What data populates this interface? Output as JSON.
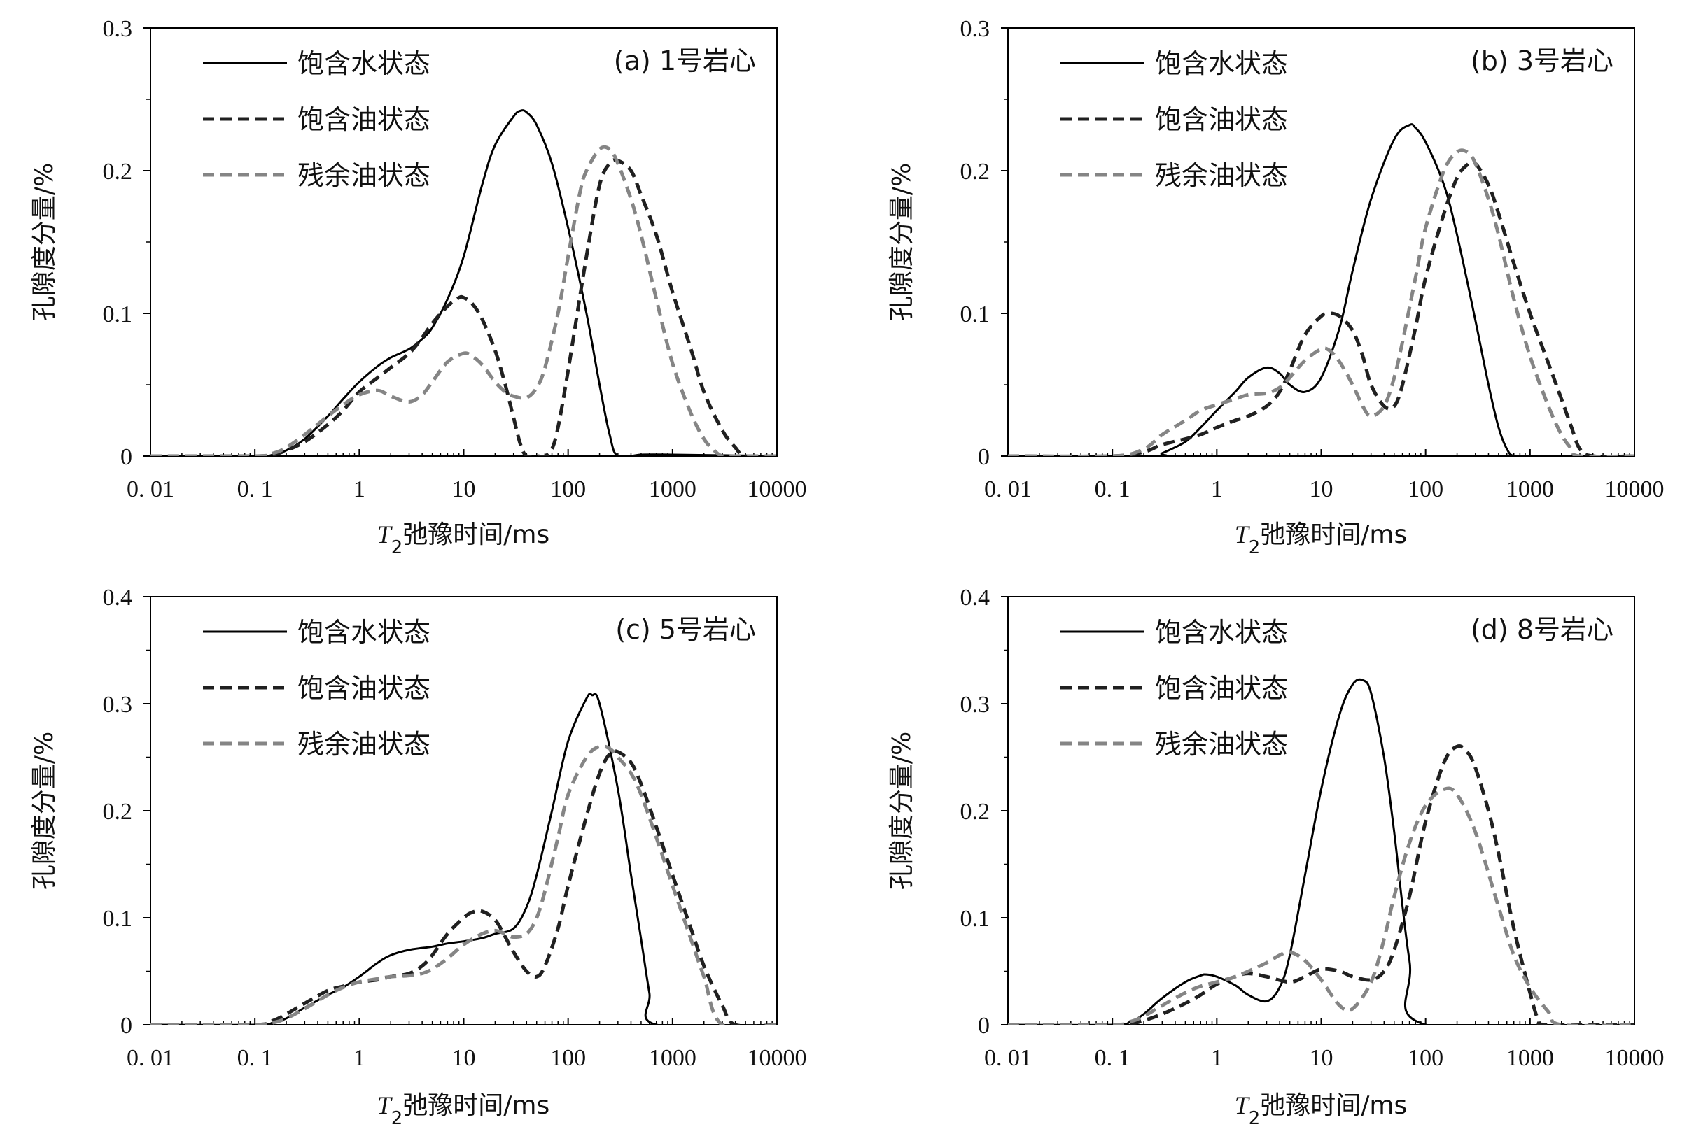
{
  "chart_data": [
    {
      "type": "line",
      "panel_label": "(a) 1号岩心",
      "xlabel": "T2弛豫时间/ms",
      "ylabel": "孔隙度分量/%",
      "x_scale": "log",
      "xlim": [
        0.01,
        10000
      ],
      "ylim": [
        0,
        0.3
      ],
      "x_ticks": [
        "0. 01",
        "0. 1",
        "1",
        "10",
        "100",
        "1000",
        "10000"
      ],
      "y_ticks": [
        "0",
        "0.1",
        "0.2",
        "0.3"
      ],
      "legend_position": "top-left",
      "series": [
        {
          "name": "饱含水状态",
          "color": "#000000",
          "style": "solid",
          "x": [
            0.01,
            0.1,
            0.15,
            0.2,
            0.3,
            0.5,
            0.7,
            1,
            1.5,
            2,
            3,
            4,
            5,
            7,
            10,
            15,
            20,
            30,
            35,
            40,
            50,
            70,
            100,
            150,
            200,
            250,
            300,
            500,
            1000,
            10000
          ],
          "y": [
            0,
            0,
            0.001,
            0.004,
            0.012,
            0.028,
            0.04,
            0.052,
            0.063,
            0.069,
            0.075,
            0.082,
            0.09,
            0.11,
            0.14,
            0.19,
            0.218,
            0.238,
            0.242,
            0.241,
            0.232,
            0.205,
            0.16,
            0.1,
            0.05,
            0.015,
            0,
            0.001,
            0.001,
            0
          ]
        },
        {
          "name": "饱含油状态",
          "color": "#202020",
          "style": "dashed",
          "x": [
            0.01,
            0.1,
            0.15,
            0.2,
            0.3,
            0.5,
            0.7,
            1,
            1.5,
            2,
            3,
            4,
            5,
            7,
            9,
            10,
            12,
            15,
            20,
            25,
            30,
            35,
            40,
            50,
            60,
            70,
            80,
            100,
            150,
            200,
            250,
            300,
            400,
            500,
            700,
            1000,
            1500,
            2000,
            3000,
            4000,
            5000,
            10000
          ],
          "y": [
            0,
            0,
            0.001,
            0.004,
            0.01,
            0.022,
            0.032,
            0.045,
            0.055,
            0.062,
            0.072,
            0.083,
            0.093,
            0.105,
            0.111,
            0.111,
            0.107,
            0.096,
            0.074,
            0.05,
            0.027,
            0.008,
            0,
            0,
            0,
            0.005,
            0.02,
            0.06,
            0.14,
            0.19,
            0.205,
            0.207,
            0.2,
            0.183,
            0.155,
            0.115,
            0.075,
            0.045,
            0.018,
            0.006,
            0,
            0
          ]
        },
        {
          "name": "残余油状态",
          "color": "#858585",
          "style": "dashed",
          "x": [
            0.01,
            0.1,
            0.15,
            0.2,
            0.3,
            0.5,
            0.7,
            1,
            1.5,
            2,
            3,
            4,
            5,
            7,
            10,
            12,
            15,
            20,
            25,
            30,
            40,
            50,
            60,
            80,
            100,
            130,
            150,
            200,
            250,
            300,
            400,
            500,
            700,
            1000,
            1500,
            2000,
            2500,
            3000,
            4000,
            10000
          ],
          "y": [
            0,
            0,
            0.002,
            0.006,
            0.015,
            0.028,
            0.036,
            0.043,
            0.046,
            0.042,
            0.038,
            0.043,
            0.052,
            0.066,
            0.072,
            0.07,
            0.064,
            0.052,
            0.045,
            0.042,
            0.041,
            0.048,
            0.062,
            0.1,
            0.14,
            0.185,
            0.2,
            0.215,
            0.215,
            0.205,
            0.18,
            0.155,
            0.11,
            0.065,
            0.03,
            0.012,
            0.004,
            0,
            0,
            0
          ]
        }
      ]
    },
    {
      "type": "line",
      "panel_label": "(b) 3号岩心",
      "xlabel": "T2弛豫时间/ms",
      "ylabel": "孔隙度分量/%",
      "x_scale": "log",
      "xlim": [
        0.01,
        10000
      ],
      "ylim": [
        0,
        0.3
      ],
      "x_ticks": [
        "0. 01",
        "0. 1",
        "1",
        "10",
        "100",
        "1000",
        "10000"
      ],
      "y_ticks": [
        "0",
        "0.1",
        "0.2",
        "0.3"
      ],
      "legend_position": "top-left",
      "series": [
        {
          "name": "饱含水状态",
          "color": "#000000",
          "style": "solid",
          "x": [
            0.01,
            0.25,
            0.3,
            0.5,
            0.7,
            1,
            1.5,
            2,
            3,
            4,
            5,
            7,
            10,
            15,
            20,
            30,
            50,
            70,
            80,
            100,
            150,
            200,
            300,
            400,
            500,
            600,
            700,
            1000,
            10000
          ],
          "y": [
            0,
            0,
            0.002,
            0.01,
            0.02,
            0.032,
            0.045,
            0.055,
            0.062,
            0.058,
            0.05,
            0.045,
            0.055,
            0.09,
            0.13,
            0.18,
            0.222,
            0.232,
            0.23,
            0.22,
            0.19,
            0.155,
            0.095,
            0.05,
            0.02,
            0.005,
            0,
            0,
            0
          ]
        },
        {
          "name": "饱含油状态",
          "color": "#202020",
          "style": "dashed",
          "x": [
            0.01,
            0.1,
            0.2,
            0.3,
            0.5,
            0.7,
            1,
            1.5,
            2,
            3,
            4,
            5,
            7,
            10,
            12,
            15,
            20,
            25,
            30,
            40,
            50,
            60,
            80,
            100,
            150,
            200,
            250,
            300,
            400,
            500,
            700,
            1000,
            1500,
            2000,
            2500,
            3000,
            4000,
            10000
          ],
          "y": [
            0,
            0,
            0.003,
            0.008,
            0.012,
            0.015,
            0.02,
            0.025,
            0.028,
            0.035,
            0.045,
            0.06,
            0.085,
            0.098,
            0.1,
            0.098,
            0.088,
            0.07,
            0.05,
            0.035,
            0.035,
            0.05,
            0.09,
            0.125,
            0.17,
            0.195,
            0.204,
            0.205,
            0.19,
            0.17,
            0.135,
            0.1,
            0.065,
            0.04,
            0.02,
            0.005,
            0,
            0
          ]
        },
        {
          "name": "残余油状态",
          "color": "#858585",
          "style": "dashed",
          "x": [
            0.01,
            0.1,
            0.2,
            0.3,
            0.5,
            0.7,
            1,
            1.5,
            2,
            3,
            4,
            5,
            7,
            10,
            12,
            15,
            20,
            25,
            30,
            40,
            50,
            60,
            80,
            100,
            150,
            200,
            250,
            300,
            400,
            500,
            700,
            1000,
            1500,
            2000,
            2500,
            3000,
            10000
          ],
          "y": [
            0,
            0,
            0.005,
            0.015,
            0.025,
            0.032,
            0.036,
            0.04,
            0.043,
            0.044,
            0.048,
            0.055,
            0.067,
            0.075,
            0.074,
            0.066,
            0.05,
            0.035,
            0.028,
            0.035,
            0.055,
            0.08,
            0.125,
            0.16,
            0.2,
            0.213,
            0.213,
            0.205,
            0.18,
            0.155,
            0.11,
            0.07,
            0.035,
            0.015,
            0.005,
            0,
            0
          ]
        }
      ]
    },
    {
      "type": "line",
      "panel_label": "(c) 5号岩心",
      "xlabel": "T2弛豫时间/ms",
      "ylabel": "孔隙度分量/%",
      "x_scale": "log",
      "xlim": [
        0.01,
        10000
      ],
      "ylim": [
        0,
        0.4
      ],
      "x_ticks": [
        "0. 01",
        "0. 1",
        "1",
        "10",
        "100",
        "1000",
        "10000"
      ],
      "y_ticks": [
        "0",
        "0.1",
        "0.2",
        "0.3",
        "0.4"
      ],
      "legend_position": "top-left",
      "series": [
        {
          "name": "饱含水状态",
          "color": "#000000",
          "style": "solid",
          "x": [
            0.01,
            0.1,
            0.15,
            0.2,
            0.3,
            0.5,
            0.7,
            1,
            1.5,
            2,
            3,
            5,
            7,
            10,
            15,
            20,
            30,
            40,
            50,
            70,
            100,
            150,
            170,
            200,
            300,
            400,
            500,
            600,
            700,
            10000
          ],
          "y": [
            0,
            0,
            0.002,
            0.006,
            0.016,
            0.028,
            0.035,
            0.045,
            0.058,
            0.065,
            0.07,
            0.073,
            0.076,
            0.078,
            0.081,
            0.085,
            0.09,
            0.11,
            0.14,
            0.2,
            0.265,
            0.305,
            0.308,
            0.3,
            0.22,
            0.14,
            0.08,
            0.03,
            0,
            0
          ]
        },
        {
          "name": "饱含油状态",
          "color": "#202020",
          "style": "dashed",
          "x": [
            0.01,
            0.1,
            0.15,
            0.2,
            0.3,
            0.5,
            0.7,
            1,
            1.5,
            2,
            3,
            4,
            5,
            7,
            10,
            12,
            15,
            20,
            25,
            30,
            40,
            50,
            60,
            80,
            100,
            150,
            200,
            250,
            300,
            400,
            500,
            700,
            1000,
            1500,
            2000,
            3000,
            4000,
            10000
          ],
          "y": [
            0,
            0,
            0.004,
            0.01,
            0.02,
            0.032,
            0.036,
            0.04,
            0.042,
            0.045,
            0.048,
            0.055,
            0.065,
            0.085,
            0.1,
            0.105,
            0.106,
            0.098,
            0.082,
            0.068,
            0.05,
            0.045,
            0.055,
            0.09,
            0.13,
            0.195,
            0.235,
            0.253,
            0.255,
            0.245,
            0.225,
            0.185,
            0.14,
            0.09,
            0.055,
            0.018,
            0,
            0
          ]
        },
        {
          "name": "残余油状态",
          "color": "#858585",
          "style": "dashed",
          "x": [
            0.01,
            0.1,
            0.15,
            0.2,
            0.3,
            0.5,
            0.7,
            1,
            1.5,
            2,
            3,
            4,
            5,
            7,
            10,
            15,
            20,
            25,
            30,
            40,
            50,
            60,
            80,
            100,
            150,
            200,
            250,
            300,
            400,
            500,
            700,
            1000,
            1500,
            2000,
            3000,
            10000
          ],
          "y": [
            0,
            0,
            0.002,
            0.006,
            0.015,
            0.028,
            0.035,
            0.04,
            0.043,
            0.045,
            0.046,
            0.048,
            0.052,
            0.062,
            0.075,
            0.085,
            0.088,
            0.085,
            0.082,
            0.085,
            0.1,
            0.125,
            0.175,
            0.215,
            0.25,
            0.26,
            0.258,
            0.25,
            0.235,
            0.215,
            0.175,
            0.13,
            0.08,
            0.045,
            0,
            0
          ]
        }
      ]
    },
    {
      "type": "line",
      "panel_label": "(d) 8号岩心",
      "xlabel": "T2弛豫时间/ms",
      "ylabel": "孔隙度分量/%",
      "x_scale": "log",
      "xlim": [
        0.01,
        10000
      ],
      "ylim": [
        0,
        0.4
      ],
      "x_ticks": [
        "0. 01",
        "0. 1",
        "1",
        "10",
        "100",
        "1000",
        "10000"
      ],
      "y_ticks": [
        "0",
        "0.1",
        "0.2",
        "0.3",
        "0.4"
      ],
      "legend_position": "top-left",
      "series": [
        {
          "name": "饱含水状态",
          "color": "#000000",
          "style": "solid",
          "x": [
            0.01,
            0.1,
            0.15,
            0.2,
            0.3,
            0.5,
            0.7,
            0.8,
            1,
            1.5,
            2,
            3,
            4,
            5,
            7,
            10,
            15,
            20,
            25,
            30,
            40,
            50,
            70,
            100,
            10000
          ],
          "y": [
            0,
            0,
            0.003,
            0.01,
            0.025,
            0.04,
            0.046,
            0.047,
            0.045,
            0.037,
            0.028,
            0.022,
            0.035,
            0.065,
            0.14,
            0.22,
            0.29,
            0.318,
            0.322,
            0.31,
            0.25,
            0.18,
            0.06,
            0,
            0
          ]
        },
        {
          "name": "饱含油状态",
          "color": "#202020",
          "style": "dashed",
          "x": [
            0.01,
            0.1,
            0.15,
            0.2,
            0.3,
            0.5,
            0.7,
            1,
            1.5,
            2,
            3,
            5,
            7,
            10,
            15,
            20,
            30,
            40,
            50,
            70,
            100,
            150,
            200,
            250,
            300,
            400,
            500,
            700,
            1000,
            1200,
            1500,
            10000
          ],
          "y": [
            0,
            0,
            0.001,
            0.004,
            0.01,
            0.02,
            0.028,
            0.038,
            0.045,
            0.048,
            0.045,
            0.04,
            0.045,
            0.052,
            0.05,
            0.045,
            0.042,
            0.05,
            0.07,
            0.12,
            0.19,
            0.245,
            0.26,
            0.255,
            0.24,
            0.2,
            0.16,
            0.09,
            0.03,
            0.005,
            0,
            0
          ]
        },
        {
          "name": "残余油状态",
          "color": "#858585",
          "style": "dashed",
          "x": [
            0.01,
            0.1,
            0.15,
            0.2,
            0.3,
            0.5,
            0.7,
            1,
            1.5,
            2,
            3,
            4,
            5,
            7,
            10,
            15,
            20,
            30,
            40,
            50,
            70,
            100,
            150,
            200,
            300,
            500,
            700,
            1000,
            1500,
            2000,
            10000
          ],
          "y": [
            0,
            0,
            0.003,
            0.008,
            0.018,
            0.03,
            0.036,
            0.04,
            0.045,
            0.05,
            0.058,
            0.065,
            0.068,
            0.06,
            0.042,
            0.018,
            0.015,
            0.04,
            0.08,
            0.12,
            0.17,
            0.205,
            0.22,
            0.215,
            0.18,
            0.11,
            0.065,
            0.035,
            0.012,
            0,
            0
          ]
        }
      ]
    }
  ]
}
